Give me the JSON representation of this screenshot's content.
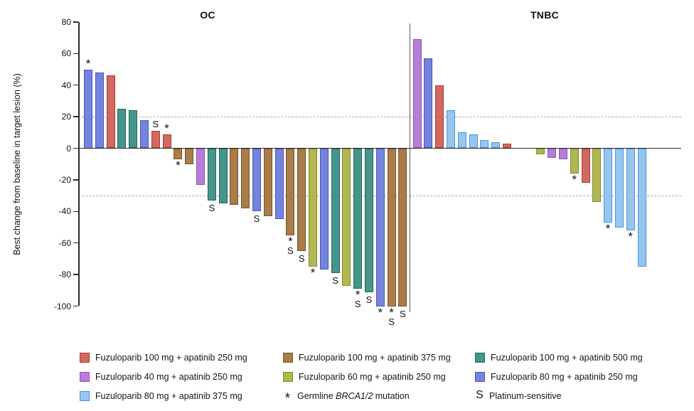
{
  "figure": {
    "y_axis_title": "Best change from baseline in target lesion (%)"
  },
  "symbols": {
    "mutation": "*",
    "platinum_sensitive": "S"
  },
  "colors": {
    "red": {
      "fill": "#d06a60",
      "stroke": "#b03a32"
    },
    "brown": {
      "fill": "#a97c4a",
      "stroke": "#775228"
    },
    "teal": {
      "fill": "#46958a",
      "stroke": "#20695f"
    },
    "purple": {
      "fill": "#b77ed7",
      "stroke": "#9551c1"
    },
    "olive": {
      "fill": "#b2b751",
      "stroke": "#7f8b2a"
    },
    "blue": {
      "fill": "#7584da",
      "stroke": "#4355c4"
    },
    "lightblue": {
      "fill": "#96c6ee",
      "stroke": "#4d93dc"
    }
  },
  "chart_data": {
    "type": "bar",
    "subtype": "waterfall",
    "title": "",
    "ylabel": "Best change from baseline in target lesion (%)",
    "ylim": [
      -100,
      80
    ],
    "yticks": [
      80,
      60,
      40,
      20,
      0,
      -20,
      -40,
      -60,
      -80,
      -100
    ],
    "reference_lines": [
      20,
      -30
    ],
    "grid": false,
    "annotation_key": {
      "*": "Germline BRCA1/2 mutation",
      "S": "Platinum-sensitive"
    },
    "groups": [
      {
        "name": "OC",
        "bars": [
          {
            "value": 50,
            "color": "blue",
            "flags": "*"
          },
          {
            "value": 48,
            "color": "blue",
            "flags": ""
          },
          {
            "value": 46,
            "color": "red",
            "flags": ""
          },
          {
            "value": 25,
            "color": "teal",
            "flags": ""
          },
          {
            "value": 24,
            "color": "teal",
            "flags": ""
          },
          {
            "value": 18,
            "color": "blue",
            "flags": ""
          },
          {
            "value": 11,
            "color": "red",
            "flags": "S"
          },
          {
            "value": 9,
            "color": "red",
            "flags": "*"
          },
          {
            "value": -7,
            "color": "brown",
            "flags": "*"
          },
          {
            "value": -10,
            "color": "brown",
            "flags": ""
          },
          {
            "value": -23,
            "color": "purple",
            "flags": ""
          },
          {
            "value": -33,
            "color": "teal",
            "flags": "S"
          },
          {
            "value": -35,
            "color": "teal",
            "flags": ""
          },
          {
            "value": -36,
            "color": "brown",
            "flags": ""
          },
          {
            "value": -38,
            "color": "brown",
            "flags": ""
          },
          {
            "value": -40,
            "color": "blue",
            "flags": "S"
          },
          {
            "value": -43,
            "color": "brown",
            "flags": ""
          },
          {
            "value": -45,
            "color": "blue",
            "flags": ""
          },
          {
            "value": -55,
            "color": "brown",
            "flags": "*S"
          },
          {
            "value": -65,
            "color": "brown",
            "flags": "S"
          },
          {
            "value": -75,
            "color": "olive",
            "flags": "*"
          },
          {
            "value": -77,
            "color": "blue",
            "flags": ""
          },
          {
            "value": -79,
            "color": "teal",
            "flags": "S"
          },
          {
            "value": -87,
            "color": "olive",
            "flags": ""
          },
          {
            "value": -89,
            "color": "teal",
            "flags": "*S"
          },
          {
            "value": -91,
            "color": "teal",
            "flags": "S"
          },
          {
            "value": -100,
            "color": "blue",
            "flags": "*"
          },
          {
            "value": -100,
            "color": "brown",
            "flags": "*S"
          },
          {
            "value": -100,
            "color": "brown",
            "flags": "S"
          }
        ]
      },
      {
        "name": "TNBC",
        "bars": [
          {
            "value": 69,
            "color": "purple",
            "flags": ""
          },
          {
            "value": 57,
            "color": "blue",
            "flags": ""
          },
          {
            "value": 40,
            "color": "red",
            "flags": ""
          },
          {
            "value": 24,
            "color": "lightblue",
            "flags": ""
          },
          {
            "value": 10,
            "color": "lightblue",
            "flags": ""
          },
          {
            "value": 9,
            "color": "lightblue",
            "flags": ""
          },
          {
            "value": 5,
            "color": "lightblue",
            "flags": ""
          },
          {
            "value": 4,
            "color": "lightblue",
            "flags": ""
          },
          {
            "value": 3,
            "color": "red",
            "flags": ""
          },
          {
            "value": 0,
            "color": "",
            "flags": ""
          },
          {
            "value": 0,
            "color": "",
            "flags": ""
          },
          {
            "value": -4,
            "color": "olive",
            "flags": ""
          },
          {
            "value": -6,
            "color": "purple",
            "flags": ""
          },
          {
            "value": -7,
            "color": "purple",
            "flags": ""
          },
          {
            "value": -16,
            "color": "olive",
            "flags": "*"
          },
          {
            "value": -22,
            "color": "red",
            "flags": ""
          },
          {
            "value": -34,
            "color": "olive",
            "flags": ""
          },
          {
            "value": -47,
            "color": "lightblue",
            "flags": "*"
          },
          {
            "value": -50,
            "color": "lightblue",
            "flags": ""
          },
          {
            "value": -52,
            "color": "lightblue",
            "flags": "*"
          },
          {
            "value": -75,
            "color": "lightblue",
            "flags": ""
          }
        ]
      }
    ]
  },
  "legend": {
    "items": [
      {
        "type": "swatch",
        "key": "red",
        "label": "Fuzuloparib 100 mg + apatinib 250 mg"
      },
      {
        "type": "swatch",
        "key": "brown",
        "label": "Fuzuloparib 100 mg + apatinib 375 mg"
      },
      {
        "type": "swatch",
        "key": "teal",
        "label": "Fuzuloparib 100 mg + apatinib 500 mg"
      },
      {
        "type": "swatch",
        "key": "purple",
        "label": "Fuzuloparib 40 mg + apatinib 250 mg"
      },
      {
        "type": "swatch",
        "key": "olive",
        "label": "Fuzuloparib 60 mg + apatinib 250 mg"
      },
      {
        "type": "swatch",
        "key": "blue",
        "label": "Fuzuloparib 80 mg + apatinib 250 mg"
      },
      {
        "type": "swatch",
        "key": "lightblue",
        "label": "Fuzuloparib 80 mg + apatinib 375 mg"
      },
      {
        "type": "symbol",
        "symbol": "*",
        "label_pre": "Germline ",
        "label_italic": "BRCA1/2",
        "label_post": " mutation"
      },
      {
        "type": "symbol",
        "symbol": "S",
        "label_pre": "Platinum-sensitive",
        "label_italic": "",
        "label_post": ""
      }
    ]
  }
}
